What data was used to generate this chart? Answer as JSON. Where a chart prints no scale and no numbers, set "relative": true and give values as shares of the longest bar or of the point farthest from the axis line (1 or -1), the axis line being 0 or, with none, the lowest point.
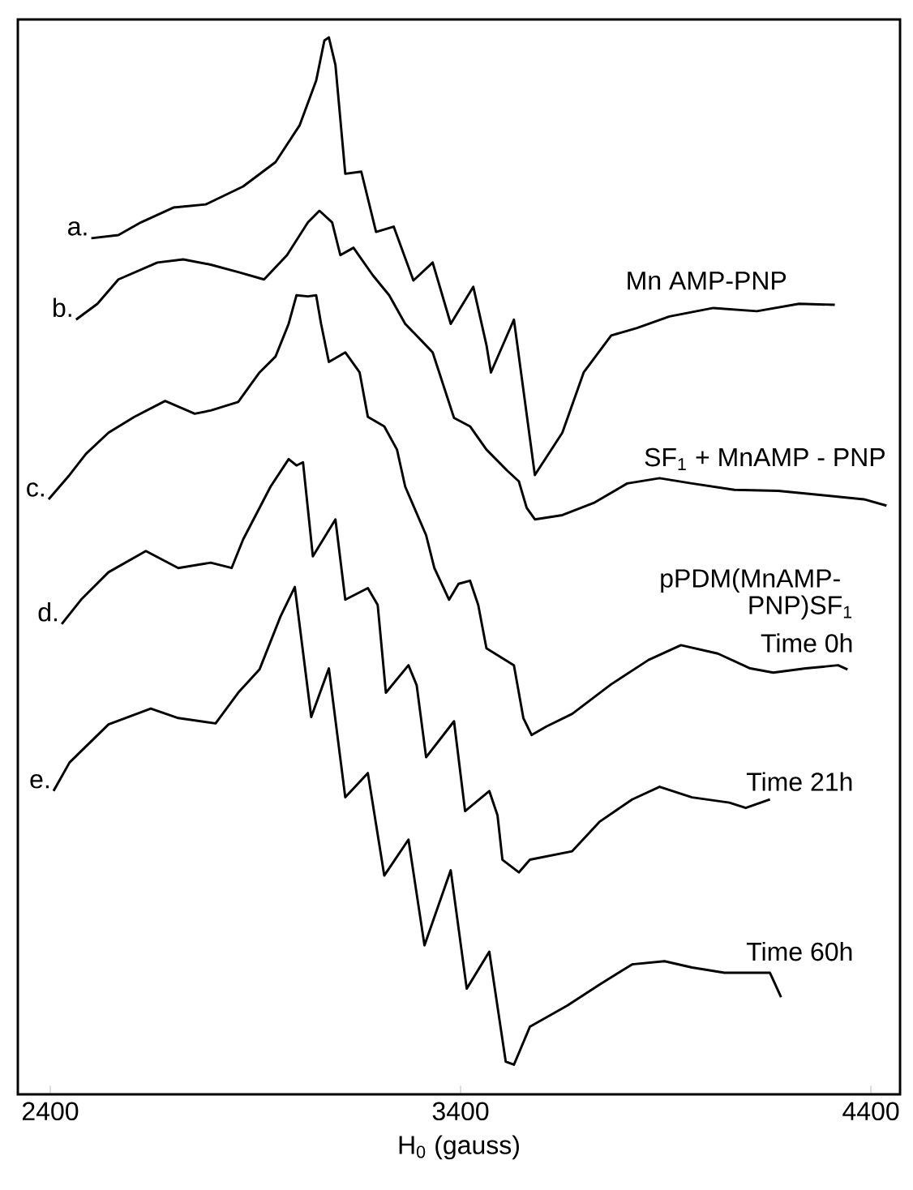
{
  "chart_data": {
    "type": "line",
    "relative": true,
    "xlabel": "H$_{0}$ (gauss)",
    "xlim": [
      2321,
      4471
    ],
    "xticks": [
      2400,
      3400,
      4400
    ],
    "grid": false,
    "marker": "none",
    "line_style": "solid",
    "series": [
      {
        "name": "a.",
        "color": "#000000",
        "x": [
          2500,
          2566,
          2621,
          2700,
          2779,
          2870,
          2949,
          3008,
          3048,
          3068,
          3079,
          3095,
          3119,
          3158,
          3194,
          3237,
          3285,
          3332,
          3376,
          3431,
          3463,
          3474,
          3530,
          3581,
          3648,
          3700,
          3767,
          3830,
          3909,
          4016,
          4122,
          4225,
          4312
        ],
        "values": [
          0.81,
          0.813,
          0.825,
          0.839,
          0.842,
          0.859,
          0.882,
          0.917,
          0.959,
          0.997,
          1.0,
          0.974,
          0.871,
          0.873,
          0.816,
          0.821,
          0.77,
          0.787,
          0.729,
          0.764,
          0.709,
          0.683,
          0.733,
          0.586,
          0.626,
          0.683,
          0.718,
          0.725,
          0.736,
          0.744,
          0.741,
          0.748,
          0.747
        ]
      },
      {
        "name": "b.",
        "color": "#000000",
        "x": [
          2463,
          2515,
          2566,
          2661,
          2724,
          2791,
          2858,
          2921,
          2977,
          3028,
          3056,
          3087,
          3107,
          3139,
          3186,
          3226,
          3265,
          3305,
          3332,
          3384,
          3423,
          3463,
          3514,
          3542,
          3561,
          3581,
          3648,
          3727,
          3806,
          3885,
          3964,
          4067,
          4174,
          4280,
          4383,
          4438
        ],
        "values": [
          0.733,
          0.748,
          0.771,
          0.787,
          0.79,
          0.785,
          0.778,
          0.771,
          0.794,
          0.825,
          0.836,
          0.825,
          0.794,
          0.801,
          0.775,
          0.756,
          0.729,
          0.713,
          0.702,
          0.64,
          0.632,
          0.61,
          0.59,
          0.58,
          0.555,
          0.544,
          0.548,
          0.56,
          0.578,
          0.583,
          0.578,
          0.572,
          0.571,
          0.567,
          0.563,
          0.557
        ]
      },
      {
        "name": "c.",
        "color": "#000000",
        "x": [
          2396,
          2447,
          2487,
          2542,
          2605,
          2680,
          2752,
          2791,
          2858,
          2910,
          2949,
          2981,
          3000,
          3028,
          3048,
          3060,
          3079,
          3119,
          3154,
          3174,
          3214,
          3245,
          3265,
          3316,
          3336,
          3372,
          3395,
          3423,
          3443,
          3463,
          3530,
          3553,
          3573,
          3609,
          3672,
          3767,
          3858,
          3937,
          4027,
          4106,
          4162,
          4241,
          4320,
          4343
        ],
        "values": [
          0.563,
          0.586,
          0.606,
          0.626,
          0.641,
          0.656,
          0.644,
          0.647,
          0.655,
          0.683,
          0.698,
          0.729,
          0.756,
          0.755,
          0.756,
          0.729,
          0.693,
          0.702,
          0.683,
          0.641,
          0.632,
          0.61,
          0.575,
          0.529,
          0.498,
          0.468,
          0.483,
          0.486,
          0.463,
          0.422,
          0.406,
          0.356,
          0.34,
          0.348,
          0.36,
          0.388,
          0.411,
          0.425,
          0.417,
          0.403,
          0.399,
          0.403,
          0.406,
          0.402
        ]
      },
      {
        "name": "d.",
        "color": "#000000",
        "x": [
          2428,
          2475,
          2542,
          2633,
          2712,
          2791,
          2842,
          2870,
          2937,
          2981,
          3000,
          3016,
          3040,
          3095,
          3119,
          3174,
          3198,
          3218,
          3273,
          3293,
          3316,
          3384,
          3411,
          3470,
          3490,
          3502,
          3542,
          3569,
          3672,
          3739,
          3818,
          3885,
          3964,
          4055,
          4095,
          4154
        ],
        "values": [
          0.445,
          0.468,
          0.494,
          0.514,
          0.498,
          0.503,
          0.498,
          0.525,
          0.575,
          0.601,
          0.595,
          0.598,
          0.509,
          0.544,
          0.468,
          0.479,
          0.463,
          0.38,
          0.406,
          0.387,
          0.319,
          0.353,
          0.268,
          0.287,
          0.264,
          0.222,
          0.21,
          0.222,
          0.23,
          0.258,
          0.279,
          0.291,
          0.281,
          0.276,
          0.271,
          0.279
        ]
      },
      {
        "name": "e.",
        "color": "#000000",
        "x": [
          2408,
          2447,
          2542,
          2645,
          2712,
          2803,
          2858,
          2910,
          2961,
          2996,
          3036,
          3079,
          3119,
          3174,
          3214,
          3273,
          3312,
          3376,
          3415,
          3470,
          3510,
          3530,
          3569,
          3660,
          3739,
          3818,
          3897,
          3964,
          4043,
          4154,
          4181
        ],
        "values": [
          0.287,
          0.314,
          0.35,
          0.365,
          0.356,
          0.351,
          0.38,
          0.402,
          0.452,
          0.48,
          0.357,
          0.403,
          0.281,
          0.304,
          0.207,
          0.241,
          0.141,
          0.212,
          0.1,
          0.135,
          0.031,
          0.028,
          0.064,
          0.084,
          0.104,
          0.123,
          0.126,
          0.12,
          0.115,
          0.115,
          0.092
        ]
      }
    ],
    "annotations": [
      "Mn AMP-PNP",
      "SF$_{1}$ + MnAMP - PNP",
      "pPDM(MnAMP-",
      "PNP)SF$_{1}$",
      "Time 0h",
      "Time 21h",
      "Time 60h"
    ]
  }
}
